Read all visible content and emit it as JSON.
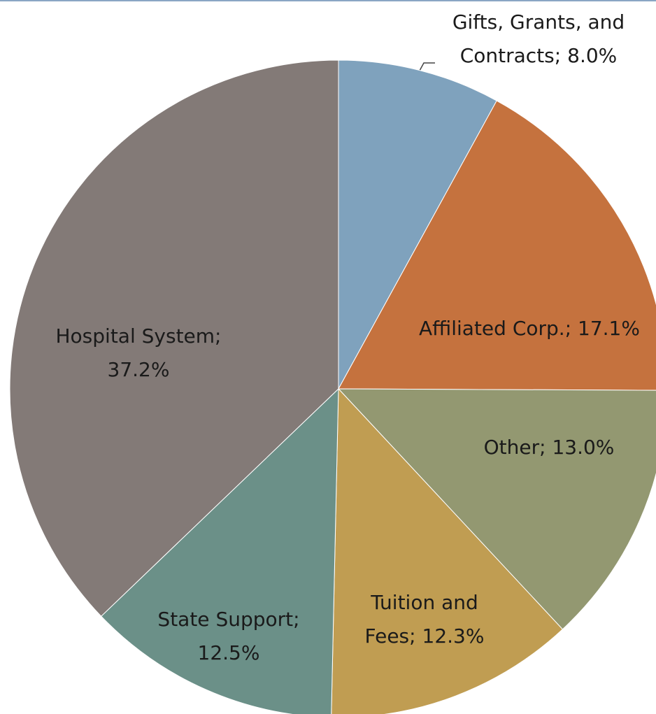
{
  "chart_data": {
    "type": "pie",
    "categories": [
      "Gifts, Grants, and Contracts;",
      "Affiliated Corp.;",
      "Other;",
      "Tuition and Fees;",
      "State Support;",
      "Hospital System;"
    ],
    "values": [
      8.0,
      17.1,
      13.0,
      12.3,
      12.5,
      37.2
    ],
    "value_labels": [
      "8.0%",
      "17.1%",
      "13.0%",
      "12.3%",
      "12.5%",
      "37.2%"
    ],
    "colors": [
      "#7fa2bd",
      "#c5723e",
      "#939871",
      "#c09d52",
      "#6b9088",
      "#837a77"
    ]
  }
}
